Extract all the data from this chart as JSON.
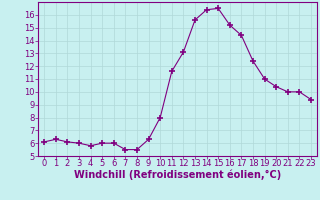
{
  "x": [
    0,
    1,
    2,
    3,
    4,
    5,
    6,
    7,
    8,
    9,
    10,
    11,
    12,
    13,
    14,
    15,
    16,
    17,
    18,
    19,
    20,
    21,
    22,
    23
  ],
  "y": [
    6.1,
    6.3,
    6.1,
    6.0,
    5.8,
    6.0,
    6.0,
    5.5,
    5.5,
    6.3,
    8.0,
    11.6,
    13.1,
    15.6,
    16.4,
    16.5,
    15.2,
    14.4,
    12.4,
    11.0,
    10.4,
    10.0,
    10.0,
    9.4
  ],
  "line_color": "#800080",
  "marker": "+",
  "marker_size": 4,
  "marker_linewidth": 1.2,
  "background_color": "#c8f0f0",
  "grid_color": "#b0d8d8",
  "xlabel": "Windchill (Refroidissement éolien,°C)",
  "xlim": [
    -0.5,
    23.5
  ],
  "ylim": [
    5,
    17
  ],
  "yticks": [
    5,
    6,
    7,
    8,
    9,
    10,
    11,
    12,
    13,
    14,
    15,
    16
  ],
  "xticks": [
    0,
    1,
    2,
    3,
    4,
    5,
    6,
    7,
    8,
    9,
    10,
    11,
    12,
    13,
    14,
    15,
    16,
    17,
    18,
    19,
    20,
    21,
    22,
    23
  ],
  "tick_color": "#800080",
  "label_color": "#800080",
  "axis_line_color": "#800080",
  "tick_fontsize": 6,
  "xlabel_fontsize": 7
}
